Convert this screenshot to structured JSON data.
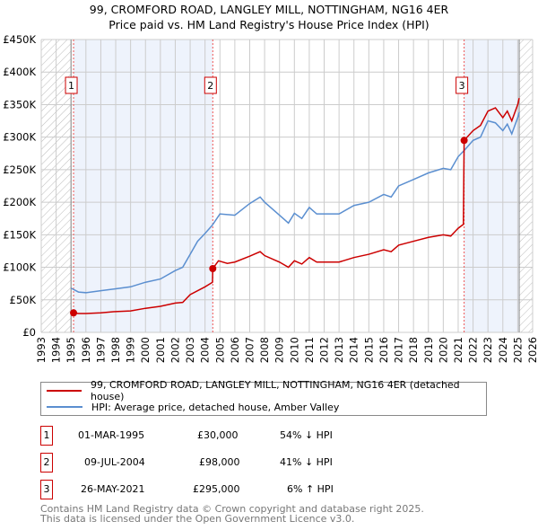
{
  "chart_data": {
    "type": "line",
    "title": "99, CROMFORD ROAD, LANGLEY MILL, NOTTINGHAM, NG16 4ER",
    "subtitle": "Price paid vs. HM Land Registry's House Price Index (HPI)",
    "xlim": [
      1993,
      2026
    ],
    "ylim": [
      0,
      450000
    ],
    "x_ticks": [
      "1993",
      "1994",
      "1995",
      "1996",
      "1997",
      "1998",
      "1999",
      "2000",
      "2001",
      "2002",
      "2003",
      "2004",
      "2005",
      "2006",
      "2007",
      "2008",
      "2009",
      "2010",
      "2011",
      "2012",
      "2013",
      "2014",
      "2015",
      "2016",
      "2017",
      "2018",
      "2019",
      "2020",
      "2021",
      "2022",
      "2023",
      "2024",
      "2025",
      "2026"
    ],
    "y_ticks": [
      {
        "v": 0,
        "label": "£0"
      },
      {
        "v": 50000,
        "label": "£50K"
      },
      {
        "v": 100000,
        "label": "£100K"
      },
      {
        "v": 150000,
        "label": "£150K"
      },
      {
        "v": 200000,
        "label": "£200K"
      },
      {
        "v": 250000,
        "label": "£250K"
      },
      {
        "v": 300000,
        "label": "£300K"
      },
      {
        "v": 350000,
        "label": "£350K"
      },
      {
        "v": 400000,
        "label": "£400K"
      },
      {
        "v": 450000,
        "label": "£450K"
      }
    ],
    "grid": true,
    "series": [
      {
        "name": "99, CROMFORD ROAD, LANGLEY MILL, NOTTINGHAM, NG16 4ER (detached house)",
        "color": "#cc0000",
        "x": [
          1995.17,
          1995.5,
          1996,
          1997,
          1998,
          1999,
          2000,
          2001,
          2002,
          2002.5,
          2003,
          2004,
          2004.5,
          2004.52,
          2004.9,
          2005.5,
          2006,
          2007,
          2007.7,
          2008,
          2009,
          2009.6,
          2010,
          2010.5,
          2011,
          2011.5,
          2012,
          2013,
          2014,
          2015,
          2016,
          2016.5,
          2017,
          2018,
          2019,
          2020,
          2020.5,
          2021,
          2021.35,
          2021.4,
          2022,
          2022.5,
          2023,
          2023.5,
          2024,
          2024.3,
          2024.6,
          2025,
          2025.1
        ],
        "y": [
          30000,
          29000,
          29000,
          30000,
          32000,
          33000,
          37000,
          40000,
          45000,
          46000,
          58000,
          70000,
          77000,
          98000,
          110000,
          106000,
          108000,
          117000,
          124000,
          118000,
          108000,
          100000,
          110000,
          105000,
          115000,
          108000,
          108000,
          108000,
          115000,
          120000,
          127000,
          124000,
          134000,
          140000,
          146000,
          150000,
          148000,
          160000,
          166000,
          295000,
          310000,
          318000,
          340000,
          345000,
          330000,
          340000,
          325000,
          350000,
          360000
        ]
      },
      {
        "name": "HPI: Average price, detached house, Amber Valley",
        "color": "#5b8fd0",
        "x": [
          1995,
          1995.5,
          1996,
          1997,
          1998,
          1999,
          2000,
          2001,
          2002,
          2002.5,
          2003,
          2003.5,
          2004,
          2004.5,
          2005,
          2006,
          2007,
          2007.7,
          2008,
          2009,
          2009.6,
          2010,
          2010.5,
          2011,
          2011.5,
          2012,
          2013,
          2014,
          2015,
          2016,
          2016.5,
          2017,
          2018,
          2019,
          2020,
          2020.5,
          2021,
          2021.5,
          2022,
          2022.5,
          2023,
          2023.5,
          2024,
          2024.3,
          2024.6,
          2025,
          2025.1
        ],
        "y": [
          68000,
          62000,
          61000,
          64000,
          67000,
          70000,
          77000,
          82000,
          95000,
          100000,
          120000,
          140000,
          152000,
          165000,
          182000,
          180000,
          198000,
          208000,
          200000,
          180000,
          168000,
          183000,
          175000,
          192000,
          182000,
          182000,
          182000,
          195000,
          200000,
          212000,
          208000,
          225000,
          235000,
          245000,
          252000,
          250000,
          270000,
          282000,
          295000,
          300000,
          325000,
          322000,
          310000,
          320000,
          305000,
          330000,
          338000
        ]
      }
    ],
    "sales": [
      {
        "label": "1",
        "x": 1995.17,
        "price": 30000,
        "date": "01-MAR-1995",
        "price_text": "£30,000",
        "hpi_text": "54% ↓ HPI"
      },
      {
        "label": "2",
        "x": 2004.52,
        "price": 98000,
        "date": "09-JUL-2004",
        "price_text": "£98,000",
        "hpi_text": "41% ↓ HPI"
      },
      {
        "label": "3",
        "x": 2021.4,
        "price": 295000,
        "date": "26-MAY-2021",
        "price_text": "£295,000",
        "hpi_text": "6% ↑ HPI"
      }
    ],
    "shaded_ranges": [
      [
        1995.17,
        2004.52
      ],
      [
        2021.4,
        2025.1
      ]
    ],
    "hatched_ranges": [
      [
        1993,
        1995
      ],
      [
        2025.1,
        2026
      ]
    ]
  },
  "footer": [
    "Contains HM Land Registry data © Crown copyright and database right 2025.",
    "This data is licensed under the Open Government Licence v3.0."
  ]
}
